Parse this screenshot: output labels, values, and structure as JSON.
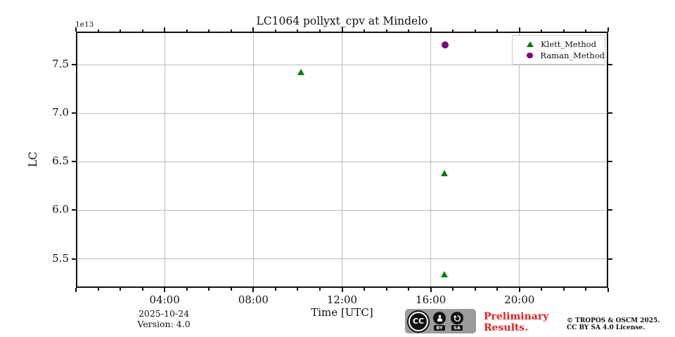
{
  "colors": {
    "klett_green": "#008000",
    "raman_purple": "#800080",
    "grid_gray": "#bbbbbb",
    "spine_black": "#111111",
    "preliminary_red": "#e32222",
    "badge_gray": "#9c9c9c"
  },
  "chart_data": {
    "type": "scatter",
    "title": "LC1064 pollyxt_cpv at Mindelo",
    "xlabel": "Time [UTC]",
    "ylabel": "LC",
    "y_offset_text": "1e13",
    "y_scale_factor": 10000000000000.0,
    "xlim_hours": [
      0,
      24
    ],
    "ylim": [
      5.2,
      7.84
    ],
    "grid": true,
    "x_major_tick_hours": [
      4,
      8,
      12,
      16,
      20
    ],
    "x_major_tick_labels": [
      "04:00",
      "08:00",
      "12:00",
      "16:00",
      "20:00"
    ],
    "x_minor_tick_interval_hours": 1,
    "y_major_ticks": [
      5.5,
      6.0,
      6.5,
      7.0,
      7.5
    ],
    "legend_position": "upper right",
    "series": [
      {
        "name": "Klett_Method",
        "marker": "triangle",
        "color": "#008000",
        "points": [
          {
            "time": "10:09",
            "x_hours": 10.15,
            "y": 7.42
          },
          {
            "time": "16:38",
            "x_hours": 16.63,
            "y": 6.38
          },
          {
            "time": "16:38",
            "x_hours": 16.63,
            "y": 5.34
          }
        ]
      },
      {
        "name": "Raman_Method",
        "marker": "circle",
        "color": "#800080",
        "points": [
          {
            "time": "16:38",
            "x_hours": 16.63,
            "y": 7.7
          }
        ]
      }
    ]
  },
  "footer": {
    "date": "2025-10-24",
    "version": "Version: 4.0",
    "license_badge": {
      "cc_label": "CC",
      "by_label": "BY",
      "sa_label": "SA"
    },
    "preliminary_line1": "Preliminary",
    "preliminary_line2": "Results.",
    "copyright_line1": "© TROPOS & OSCM 2025.",
    "copyright_line2": "CC BY SA 4.0 License."
  }
}
